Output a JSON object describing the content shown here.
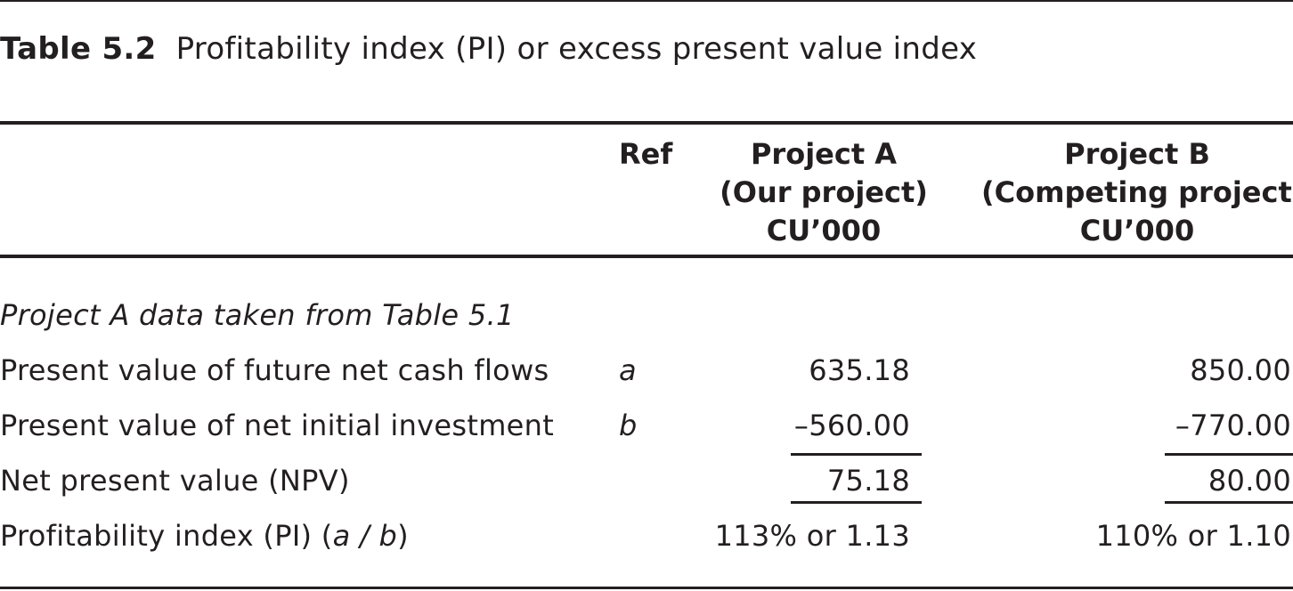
{
  "table": {
    "caption": {
      "label": "Table 5.2",
      "text": "Profitability index (PI) or excess present value index"
    },
    "headers": {
      "ref": "Ref",
      "project_a": [
        "Project A",
        "(Our project)",
        "CU’000"
      ],
      "project_b": [
        "Project B",
        "(Competing project)",
        "CU’000"
      ]
    },
    "note": "Project A data taken from Table 5.1",
    "rows": [
      {
        "label": "Present value of future net cash flows",
        "ref": "a",
        "project_a": "635.18",
        "project_b": "850.00"
      },
      {
        "label": "Present value of net initial investment",
        "ref": "b",
        "project_a": "–560.00",
        "project_b": "–770.00"
      },
      {
        "label": "Net present value (NPV)",
        "ref": "",
        "project_a": "75.18",
        "project_b": "80.00"
      },
      {
        "label_prefix": "Profitability index (PI) (",
        "label_italic": "a / b",
        "label_suffix": ")",
        "ref": "",
        "project_a": "113% or 1.13",
        "project_b": "110% or 1.10"
      }
    ]
  }
}
